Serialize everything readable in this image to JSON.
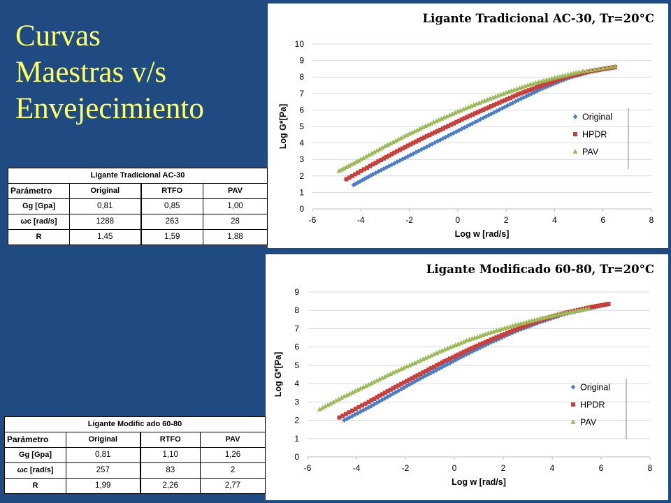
{
  "slide": {
    "title_lines": [
      "Curvas",
      "Maestras v/s",
      "Envejecimiento"
    ]
  },
  "tables": [
    {
      "caption": "Ligante Tradicional AC-30",
      "headers": [
        "Parámetro",
        "Original",
        "RTFO",
        "PAV"
      ],
      "rows": [
        [
          "Gg [Gpa]",
          "0,81",
          "0,85",
          "1,00"
        ],
        [
          "ωc [rad/s]",
          "1288",
          "263",
          "28"
        ],
        [
          "R",
          "1,45",
          "1,59",
          "1,88"
        ]
      ]
    },
    {
      "caption": "Ligante Modific ado 60-80",
      "headers": [
        "Parámetro",
        "Original",
        "RTFO",
        "PAV"
      ],
      "rows": [
        [
          "Gg [Gpa]",
          "0,81",
          "1,10",
          "1,26"
        ],
        [
          "ωc [rad/s]",
          "257",
          "83",
          "2"
        ],
        [
          "R",
          "1,99",
          "2,26",
          "2,77"
        ]
      ]
    }
  ],
  "colors": {
    "background": "#1f4a82",
    "title": "#ffff66",
    "original": "#4a7ec8",
    "hpdr": "#c8403c",
    "pav": "#9bbb59",
    "grid": "#d9d9d9"
  },
  "chart_data": [
    {
      "type": "scatter",
      "title": "Ligante Tradicional AC-30, Tr=20°C",
      "xlabel": "Log w [rad/s]",
      "ylabel": "Log G*[Pa]",
      "xlim": [
        -6,
        8
      ],
      "ylim": [
        0,
        10
      ],
      "xticks": [
        -6,
        -4,
        -2,
        0,
        2,
        4,
        6,
        8
      ],
      "yticks": [
        0,
        1,
        2,
        3,
        4,
        5,
        6,
        7,
        8,
        9,
        10
      ],
      "grid": true,
      "legend": "right",
      "series": [
        {
          "name": "Original",
          "marker": "diamond",
          "x": [
            -4.3,
            -3.5,
            -2.5,
            -1.5,
            -0.5,
            0.5,
            1.5,
            2.5,
            3.5,
            4.5,
            5.5,
            6.5
          ],
          "y": [
            1.45,
            2.1,
            2.85,
            3.6,
            4.35,
            5.1,
            5.85,
            6.6,
            7.3,
            7.9,
            8.35,
            8.6
          ]
        },
        {
          "name": "HPDR",
          "marker": "square",
          "x": [
            -4.6,
            -3.5,
            -2.5,
            -1.5,
            -0.5,
            0.5,
            1.5,
            2.5,
            3.5,
            4.5,
            5.5,
            6.5
          ],
          "y": [
            1.8,
            2.7,
            3.5,
            4.25,
            4.95,
            5.65,
            6.3,
            6.95,
            7.5,
            8.0,
            8.35,
            8.6
          ]
        },
        {
          "name": "PAV",
          "marker": "triangle",
          "x": [
            -4.9,
            -4.0,
            -3.0,
            -2.0,
            -1.0,
            0.0,
            1.0,
            2.0,
            3.0,
            4.0,
            5.0,
            6.5
          ],
          "y": [
            2.3,
            3.0,
            3.8,
            4.55,
            5.25,
            5.9,
            6.5,
            7.05,
            7.55,
            7.95,
            8.3,
            8.65
          ]
        }
      ]
    },
    {
      "type": "scatter",
      "title": "Ligante Modificado 60-80, Tr=20°C",
      "xlabel": "Log w [rad/s]",
      "ylabel": "Log G*[Pa]",
      "xlim": [
        -6,
        8
      ],
      "ylim": [
        0,
        9
      ],
      "xticks": [
        -6,
        -4,
        -2,
        0,
        2,
        4,
        6,
        8
      ],
      "yticks": [
        0,
        1,
        2,
        3,
        4,
        5,
        6,
        7,
        8,
        9
      ],
      "grid": true,
      "legend": "right",
      "series": [
        {
          "name": "Original",
          "marker": "diamond",
          "x": [
            -4.5,
            -3.5,
            -2.5,
            -1.5,
            -0.5,
            0.5,
            1.5,
            2.5,
            3.5,
            4.5,
            5.5,
            6.3
          ],
          "y": [
            2.0,
            2.7,
            3.45,
            4.2,
            4.9,
            5.6,
            6.25,
            6.85,
            7.35,
            7.8,
            8.1,
            8.35
          ]
        },
        {
          "name": "HPDR",
          "marker": "square",
          "x": [
            -4.7,
            -3.5,
            -2.5,
            -1.5,
            -0.5,
            0.5,
            1.5,
            2.5,
            3.5,
            4.5,
            5.5,
            6.3
          ],
          "y": [
            2.15,
            3.0,
            3.75,
            4.45,
            5.15,
            5.8,
            6.4,
            6.95,
            7.45,
            7.85,
            8.15,
            8.35
          ]
        },
        {
          "name": "PAV",
          "marker": "triangle",
          "x": [
            -5.5,
            -4.5,
            -3.5,
            -2.5,
            -1.5,
            -0.5,
            0.5,
            1.5,
            2.5,
            3.5,
            4.5,
            5.5
          ],
          "y": [
            2.6,
            3.3,
            3.95,
            4.6,
            5.2,
            5.8,
            6.35,
            6.8,
            7.2,
            7.55,
            7.85,
            8.1
          ]
        }
      ]
    }
  ]
}
